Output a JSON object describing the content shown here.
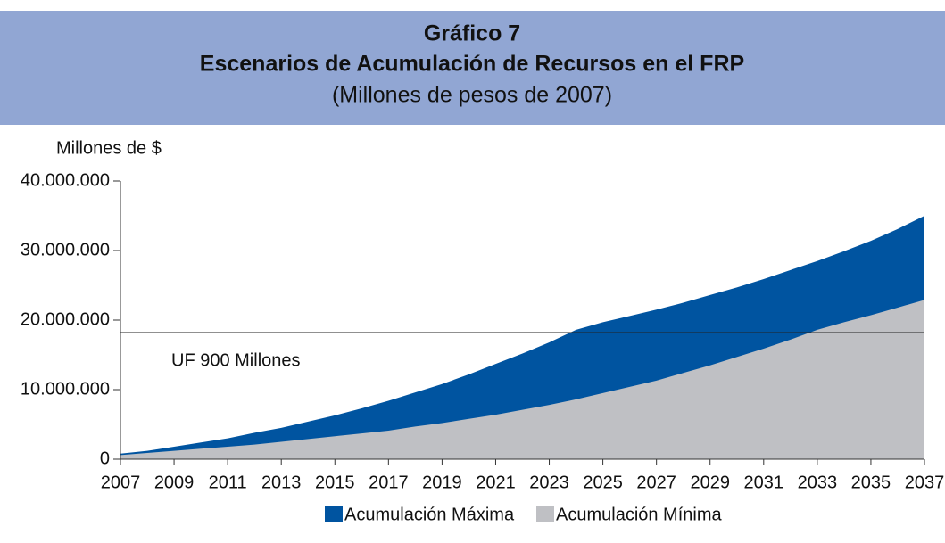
{
  "chart_data": {
    "type": "area",
    "title": "Gráfico 7",
    "subtitle": "Escenarios de Acumulación de Recursos en el FRP",
    "subtitle2": "(Millones de pesos de 2007)",
    "y_label": "Millones de $",
    "x": [
      2007,
      2008,
      2009,
      2010,
      2011,
      2012,
      2013,
      2014,
      2015,
      2016,
      2017,
      2018,
      2019,
      2020,
      2021,
      2022,
      2023,
      2024,
      2025,
      2026,
      2027,
      2028,
      2029,
      2030,
      2031,
      2032,
      2033,
      2034,
      2035,
      2036,
      2037
    ],
    "series": [
      {
        "name": "Acumulación Máxima",
        "color": "#0054a0",
        "values": [
          800000,
          1200000,
          1800000,
          2400000,
          3000000,
          3800000,
          4500000,
          5400000,
          6300000,
          7300000,
          8400000,
          9600000,
          10800000,
          12200000,
          13700000,
          15200000,
          16800000,
          18600000,
          19700000,
          20600000,
          21500000,
          22500000,
          23600000,
          24700000,
          25900000,
          27200000,
          28500000,
          29900000,
          31400000,
          33100000,
          35000000
        ]
      },
      {
        "name": "Acumulación Mínima",
        "color": "#bfc0c4",
        "values": [
          600000,
          900000,
          1200000,
          1500000,
          1800000,
          2100000,
          2500000,
          2900000,
          3300000,
          3700000,
          4100000,
          4700000,
          5200000,
          5800000,
          6400000,
          7100000,
          7800000,
          8600000,
          9500000,
          10400000,
          11300000,
          12400000,
          13500000,
          14700000,
          15900000,
          17200000,
          18600000,
          19700000,
          20700000,
          21800000,
          22900000
        ]
      }
    ],
    "reference_line": {
      "value": 18200000,
      "label": "UF 900 Millones"
    },
    "xlim": [
      2007,
      2037
    ],
    "xticks": [
      2007,
      2009,
      2011,
      2013,
      2015,
      2017,
      2019,
      2021,
      2023,
      2025,
      2027,
      2029,
      2031,
      2033,
      2035,
      2037
    ],
    "ylim": [
      0,
      40000000
    ],
    "yticks": [
      0,
      {
        "value": 10000000,
        "label": "10.000.000"
      },
      {
        "value": 20000000,
        "label": "20.000.000"
      },
      {
        "value": 30000000,
        "label": "30.000.000"
      },
      {
        "value": 40000000,
        "label": "40.000.000"
      }
    ],
    "legend": "bottom"
  }
}
